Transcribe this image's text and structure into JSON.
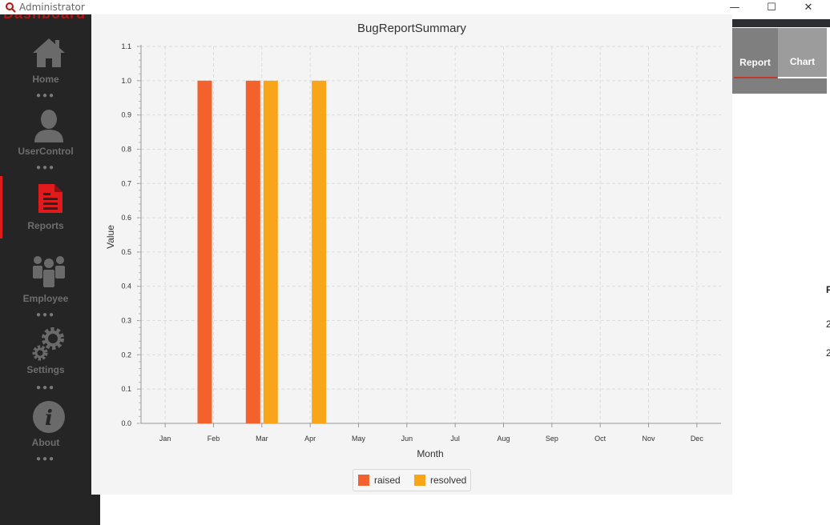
{
  "window": {
    "title": "Administrator",
    "minimize": "—",
    "maximize": "☐",
    "close": "✕"
  },
  "brand": {
    "text": "Dashboard"
  },
  "sidebar": {
    "items": [
      {
        "label": "Home",
        "icon": "home-icon"
      },
      {
        "label": "UserControl",
        "icon": "user-icon"
      },
      {
        "label": "Reports",
        "icon": "report-icon",
        "active": true
      },
      {
        "label": "Employee",
        "icon": "employees-icon"
      },
      {
        "label": "Settings",
        "icon": "gears-icon"
      },
      {
        "label": "About",
        "icon": "info-icon"
      }
    ],
    "dots": "●●●",
    "active_color": "#e01b1b"
  },
  "tabs": [
    {
      "label": "Report"
    },
    {
      "label": "Chart",
      "active": true
    }
  ],
  "right_edge": {
    "text1": "F",
    "text2": "2",
    "text3": "2"
  },
  "chart_data": {
    "type": "bar",
    "title": "BugReportSummary",
    "xlabel": "Month",
    "ylabel": "Value",
    "categories": [
      "Jan",
      "Feb",
      "Mar",
      "Apr",
      "May",
      "Jun",
      "Jul",
      "Aug",
      "Sep",
      "Oct",
      "Nov",
      "Dec"
    ],
    "series": [
      {
        "name": "raised",
        "color": "#f3622d",
        "values": [
          0,
          1,
          1,
          0,
          0,
          0,
          0,
          0,
          0,
          0,
          0,
          0
        ]
      },
      {
        "name": "resolved",
        "color": "#f9a51a",
        "values": [
          0,
          0,
          1,
          1,
          0,
          0,
          0,
          0,
          0,
          0,
          0,
          0
        ]
      }
    ],
    "ylim": [
      0,
      1.1
    ],
    "yticks": [
      "0.0",
      "0.1",
      "0.2",
      "0.3",
      "0.4",
      "0.5",
      "0.6",
      "0.7",
      "0.8",
      "0.9",
      "1.0",
      "1.1"
    ],
    "grid": true,
    "legend_position": "bottom"
  }
}
